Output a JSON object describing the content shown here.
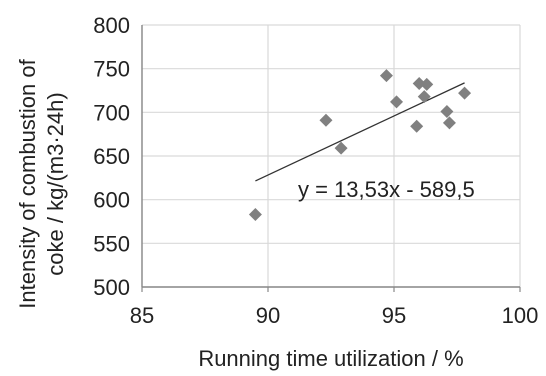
{
  "chart_data": {
    "type": "scatter",
    "xlabel": "Running time utilization / %",
    "ylabel_line1": "Intensity of combustion of",
    "ylabel_line2": "coke /  kg/(m3·24h)",
    "xlim": [
      85,
      100
    ],
    "ylim": [
      500,
      800
    ],
    "x_ticks": [
      85,
      90,
      95,
      100
    ],
    "y_ticks": [
      500,
      550,
      600,
      650,
      700,
      750,
      800
    ],
    "grid": true,
    "marker_color": "#808080",
    "trendline_color": "#333333",
    "points": [
      {
        "x": 89.5,
        "y": 583
      },
      {
        "x": 92.3,
        "y": 691
      },
      {
        "x": 92.9,
        "y": 659
      },
      {
        "x": 94.7,
        "y": 742
      },
      {
        "x": 95.1,
        "y": 712
      },
      {
        "x": 95.9,
        "y": 684
      },
      {
        "x": 96.0,
        "y": 733
      },
      {
        "x": 96.2,
        "y": 718
      },
      {
        "x": 96.3,
        "y": 732
      },
      {
        "x": 97.1,
        "y": 701
      },
      {
        "x": 97.2,
        "y": 688
      },
      {
        "x": 97.8,
        "y": 722
      }
    ],
    "trendline": {
      "label": "y = 13,53x - 589,5",
      "slope": 13.53,
      "intercept": -589.5,
      "x_range": [
        89.5,
        97.8
      ]
    }
  }
}
